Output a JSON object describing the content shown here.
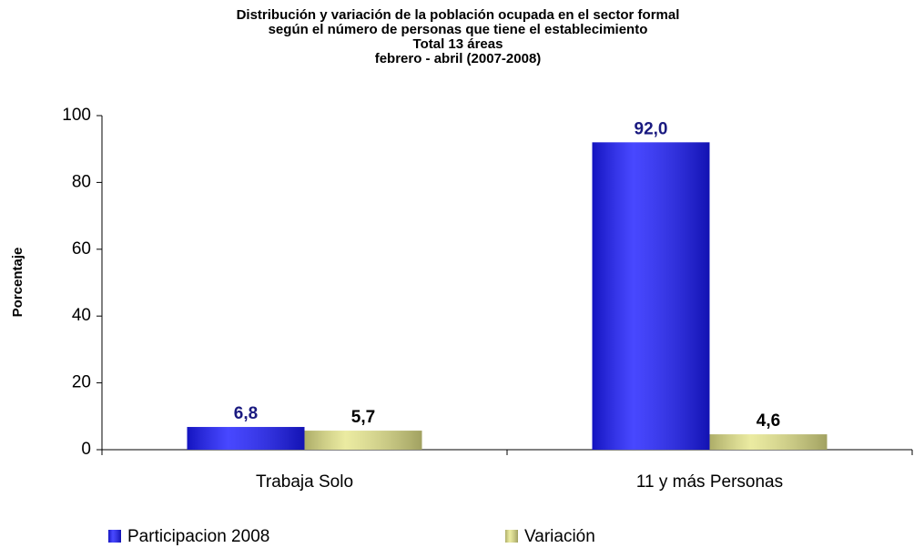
{
  "chart_data": {
    "type": "bar",
    "title": [
      "Distribución y variación de la población ocupada en el sector formal",
      "según el número de personas que tiene el establecimiento",
      "Total 13 áreas",
      "febrero - abril  (2007-2008)"
    ],
    "y_label": "Porcentaje",
    "categories": [
      "Trabaja Solo",
      "11 y más Personas"
    ],
    "series": [
      {
        "name": "Participacion 2008",
        "color": "#1a1aff",
        "label_color": "#1a1a80",
        "values": [
          6.8,
          92.0
        ],
        "value_labels": [
          "6,8",
          "92,0"
        ]
      },
      {
        "name": "Variación",
        "color": "#e6e68a",
        "label_color": "#000000",
        "values": [
          5.7,
          4.6
        ],
        "value_labels": [
          "5,7",
          "4,6"
        ]
      }
    ],
    "ylim": [
      0,
      100
    ],
    "yticks": [
      0,
      20,
      40,
      60,
      80,
      100
    ],
    "grid": false,
    "legend": "bottom"
  }
}
